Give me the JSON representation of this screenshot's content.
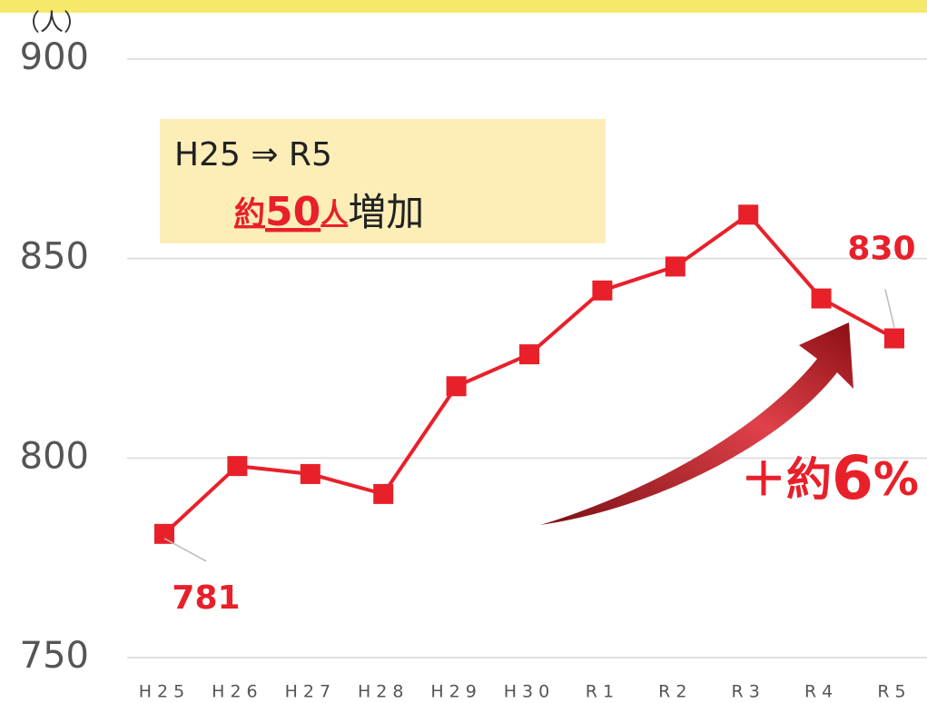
{
  "chart_data": {
    "type": "line",
    "unit_label": "（人）",
    "categories": [
      "H25",
      "H26",
      "H27",
      "H28",
      "H29",
      "H30",
      "R1",
      "R2",
      "R3",
      "R4",
      "R5"
    ],
    "series": [
      {
        "color": "#e8202a",
        "values": [
          781,
          798,
          796,
          791,
          818,
          826,
          842,
          848,
          861,
          840,
          830
        ]
      }
    ],
    "labeled_points": [
      0,
      10
    ],
    "ylim": [
      750,
      900
    ],
    "yticks": [
      750,
      800,
      850,
      900
    ],
    "grid": true,
    "box_line1": "H25 ⇒ R5",
    "box_line2": [
      "約",
      "50",
      "人",
      "増加"
    ],
    "growth_label": [
      "＋約",
      "6",
      "%"
    ]
  }
}
